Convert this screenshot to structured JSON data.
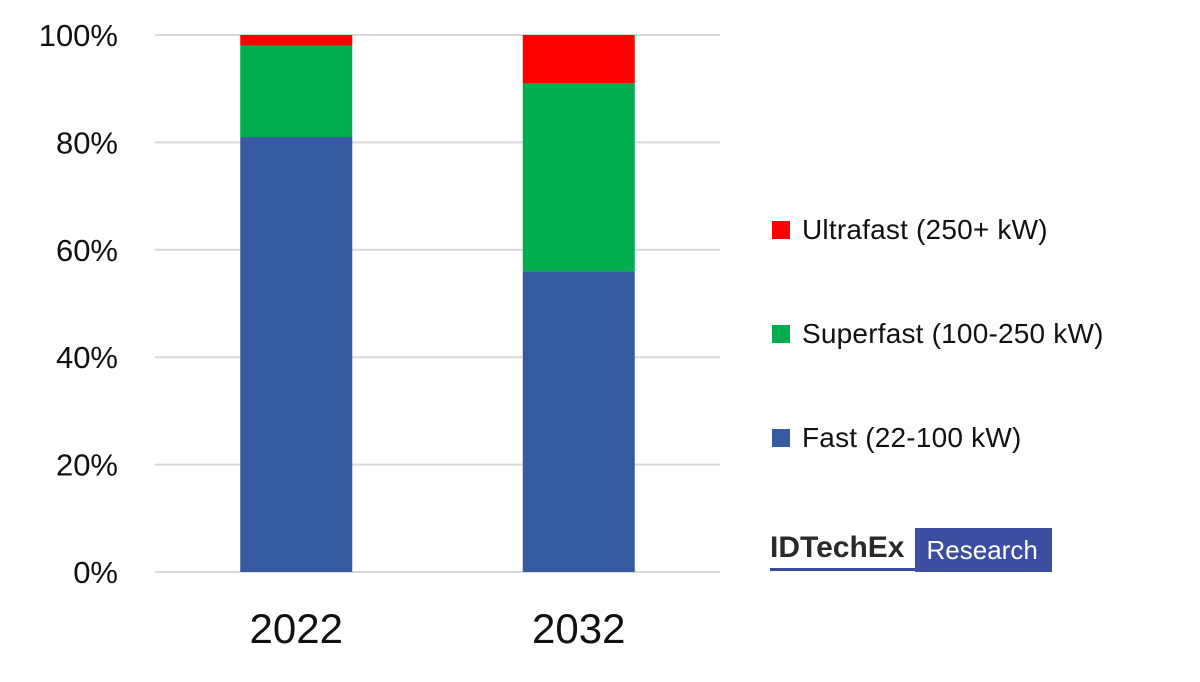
{
  "chart_data": {
    "type": "bar",
    "stacked": true,
    "categories": [
      "2022",
      "2032"
    ],
    "series": [
      {
        "name": "Fast (22-100 kW)",
        "color": "#365aa0",
        "values": [
          81,
          56
        ]
      },
      {
        "name": "Superfast (100-250 kW)",
        "color": "#00ae4f",
        "values": [
          17,
          35
        ]
      },
      {
        "name": "Ultrafast (250+ kW)",
        "color": "#ff0000",
        "values": [
          2,
          9
        ]
      }
    ],
    "y_ticks": [
      0,
      20,
      40,
      60,
      80,
      100
    ],
    "y_tick_labels": [
      "0%",
      "20%",
      "40%",
      "60%",
      "80%",
      "100%"
    ],
    "ylim": [
      0,
      100
    ],
    "title": "",
    "xlabel": "",
    "ylabel": "",
    "grid": true,
    "legend_position": "right",
    "legend_order": [
      "Ultrafast (250+ kW)",
      "Superfast (100-250 kW)",
      "Fast (22-100 kW)"
    ]
  },
  "branding": {
    "name": "IDTechEx",
    "tag": "Research"
  }
}
